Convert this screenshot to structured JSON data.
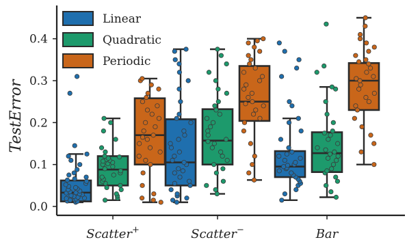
{
  "colors": {
    "Linear": "#1f6fae",
    "Quadratic": "#1d9a6c",
    "Periodic": "#c9661a",
    "box_edge": "#2b2b2b"
  },
  "chart_data": {
    "type": "box",
    "ylabel": "TestError",
    "ylim": [
      -0.01,
      0.47
    ],
    "yticks": [
      0.0,
      0.1,
      0.2,
      0.3,
      0.4
    ],
    "ytick_labels": [
      "0.0",
      "0.1",
      "0.2",
      "0.3",
      "0.4"
    ],
    "grid": false,
    "legend_position": "top-left",
    "categories": [
      {
        "base": "Scatter",
        "sup": "+"
      },
      {
        "base": "Scatter",
        "sup": "−"
      },
      {
        "base": "Bar",
        "sup": ""
      }
    ],
    "series": [
      {
        "name": "Linear",
        "boxes": [
          {
            "whisker_low": 0.01,
            "q1": 0.012,
            "median": 0.033,
            "q3": 0.062,
            "whisker_high": 0.125,
            "points": [
              0.01,
              0.012,
              0.013,
              0.015,
              0.016,
              0.018,
              0.019,
              0.02,
              0.022,
              0.024,
              0.026,
              0.028,
              0.03,
              0.032,
              0.033,
              0.035,
              0.037,
              0.04,
              0.042,
              0.045,
              0.048,
              0.052,
              0.055,
              0.06,
              0.063,
              0.066,
              0.07,
              0.075,
              0.08,
              0.088,
              0.1,
              0.11,
              0.12,
              0.125,
              0.145,
              0.27,
              0.31
            ]
          },
          {
            "whisker_low": 0.01,
            "q1": 0.05,
            "median": 0.105,
            "q3": 0.208,
            "whisker_high": 0.375,
            "points": [
              0.01,
              0.015,
              0.02,
              0.025,
              0.03,
              0.04,
              0.05,
              0.055,
              0.06,
              0.07,
              0.08,
              0.085,
              0.09,
              0.1,
              0.105,
              0.11,
              0.12,
              0.13,
              0.14,
              0.15,
              0.16,
              0.17,
              0.18,
              0.2,
              0.21,
              0.22,
              0.25,
              0.28,
              0.3,
              0.32,
              0.34,
              0.35,
              0.37,
              0.375
            ]
          },
          {
            "whisker_low": 0.015,
            "q1": 0.07,
            "median": 0.095,
            "q3": 0.132,
            "whisker_high": 0.21,
            "points": [
              0.015,
              0.03,
              0.04,
              0.05,
              0.055,
              0.06,
              0.065,
              0.07,
              0.075,
              0.08,
              0.085,
              0.09,
              0.092,
              0.095,
              0.098,
              0.1,
              0.105,
              0.11,
              0.115,
              0.12,
              0.125,
              0.13,
              0.14,
              0.16,
              0.18,
              0.2,
              0.21,
              0.24,
              0.25,
              0.31,
              0.33,
              0.35,
              0.37,
              0.39
            ]
          }
        ]
      },
      {
        "name": "Quadratic",
        "boxes": [
          {
            "whisker_low": 0.015,
            "q1": 0.05,
            "median": 0.088,
            "q3": 0.12,
            "whisker_high": 0.21,
            "points": [
              0.015,
              0.02,
              0.025,
              0.03,
              0.04,
              0.045,
              0.05,
              0.055,
              0.06,
              0.065,
              0.07,
              0.075,
              0.08,
              0.085,
              0.09,
              0.095,
              0.1,
              0.102,
              0.105,
              0.108,
              0.11,
              0.112,
              0.115,
              0.118,
              0.12,
              0.13,
              0.14,
              0.16,
              0.18,
              0.2,
              0.21
            ]
          },
          {
            "whisker_low": 0.03,
            "q1": 0.1,
            "median": 0.157,
            "q3": 0.232,
            "whisker_high": 0.375,
            "points": [
              0.03,
              0.04,
              0.05,
              0.06,
              0.08,
              0.09,
              0.1,
              0.11,
              0.12,
              0.13,
              0.14,
              0.15,
              0.155,
              0.16,
              0.17,
              0.18,
              0.19,
              0.2,
              0.21,
              0.22,
              0.23,
              0.24,
              0.25,
              0.27,
              0.28,
              0.3,
              0.32,
              0.34,
              0.36,
              0.375
            ]
          },
          {
            "whisker_low": 0.022,
            "q1": 0.082,
            "median": 0.127,
            "q3": 0.177,
            "whisker_high": 0.285,
            "points": [
              0.022,
              0.035,
              0.05,
              0.06,
              0.07,
              0.08,
              0.085,
              0.09,
              0.1,
              0.11,
              0.115,
              0.12,
              0.125,
              0.13,
              0.135,
              0.14,
              0.15,
              0.16,
              0.17,
              0.175,
              0.18,
              0.2,
              0.22,
              0.25,
              0.28,
              0.285,
              0.32,
              0.335,
              0.435
            ]
          }
        ]
      },
      {
        "name": "Periodic",
        "boxes": [
          {
            "whisker_low": 0.01,
            "q1": 0.1,
            "median": 0.17,
            "q3": 0.258,
            "whisker_high": 0.305,
            "points": [
              0.01,
              0.015,
              0.02,
              0.03,
              0.05,
              0.08,
              0.1,
              0.11,
              0.12,
              0.13,
              0.14,
              0.15,
              0.16,
              0.165,
              0.17,
              0.18,
              0.19,
              0.2,
              0.21,
              0.22,
              0.23,
              0.24,
              0.25,
              0.26,
              0.27,
              0.28,
              0.29,
              0.3,
              0.305
            ]
          },
          {
            "whisker_low": 0.063,
            "q1": 0.204,
            "median": 0.25,
            "q3": 0.335,
            "whisker_high": 0.4,
            "points": [
              0.063,
              0.08,
              0.1,
              0.12,
              0.15,
              0.18,
              0.2,
              0.21,
              0.22,
              0.23,
              0.24,
              0.245,
              0.25,
              0.26,
              0.27,
              0.28,
              0.29,
              0.3,
              0.31,
              0.32,
              0.33,
              0.34,
              0.35,
              0.36,
              0.37,
              0.38,
              0.39,
              0.395,
              0.4
            ]
          },
          {
            "whisker_low": 0.1,
            "q1": 0.23,
            "median": 0.3,
            "q3": 0.342,
            "whisker_high": 0.45,
            "points": [
              0.1,
              0.13,
              0.15,
              0.17,
              0.19,
              0.21,
              0.23,
              0.24,
              0.25,
              0.26,
              0.27,
              0.28,
              0.29,
              0.3,
              0.305,
              0.31,
              0.32,
              0.33,
              0.34,
              0.345,
              0.35,
              0.36,
              0.37,
              0.38,
              0.39,
              0.4,
              0.41,
              0.43,
              0.45
            ]
          }
        ]
      }
    ]
  }
}
